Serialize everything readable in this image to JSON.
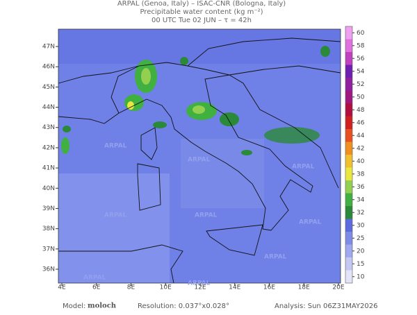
{
  "header": {
    "line1": "ARPAL (Genoa, Italy)  –  ISAC-CNR (Bologna, Italy)",
    "line2": "Precipitable water content (kg m⁻²)",
    "line3": "00 UTC Tue 02 JUN  –  τ = 42h"
  },
  "map": {
    "watermark": "ARPAL",
    "lat_ticks": [
      {
        "value": 36,
        "label": "36N"
      },
      {
        "value": 37,
        "label": "37N"
      },
      {
        "value": 38,
        "label": "38N"
      },
      {
        "value": 39,
        "label": "39N"
      },
      {
        "value": 40,
        "label": "40N"
      },
      {
        "value": 41,
        "label": "41N"
      },
      {
        "value": 42,
        "label": "42N"
      },
      {
        "value": 43,
        "label": "43N"
      },
      {
        "value": 44,
        "label": "44N"
      },
      {
        "value": 45,
        "label": "45N"
      },
      {
        "value": 46,
        "label": "46N"
      },
      {
        "value": 47,
        "label": "47N"
      }
    ],
    "lon_ticks": [
      {
        "value": 4,
        "label": "4E"
      },
      {
        "value": 6,
        "label": "6E"
      },
      {
        "value": 8,
        "label": "8E"
      },
      {
        "value": 10,
        "label": "10E"
      },
      {
        "value": 12,
        "label": "12E"
      },
      {
        "value": 14,
        "label": "14E"
      },
      {
        "value": 16,
        "label": "16E"
      },
      {
        "value": 18,
        "label": "18E"
      },
      {
        "value": 20,
        "label": "20E"
      }
    ]
  },
  "colorbar": {
    "levels": [
      {
        "value": 10,
        "color": "#e4e4f8"
      },
      {
        "value": 15,
        "color": "#c4c8f2"
      },
      {
        "value": 20,
        "color": "#a0a8ef"
      },
      {
        "value": 25,
        "color": "#7e8ce8"
      },
      {
        "value": 30,
        "color": "#5c6ce0"
      },
      {
        "value": 32,
        "color": "#2a8a3a"
      },
      {
        "value": 34,
        "color": "#40b040"
      },
      {
        "value": 36,
        "color": "#94d050"
      },
      {
        "value": 38,
        "color": "#e8e840"
      },
      {
        "value": 40,
        "color": "#f0c030"
      },
      {
        "value": 42,
        "color": "#f09020"
      },
      {
        "value": 44,
        "color": "#e85020"
      },
      {
        "value": 46,
        "color": "#d02020"
      },
      {
        "value": 48,
        "color": "#b01040"
      },
      {
        "value": 50,
        "color": "#a01880"
      },
      {
        "value": 52,
        "color": "#9020a0"
      },
      {
        "value": 54,
        "color": "#7020b0"
      },
      {
        "value": 56,
        "color": "#c040c0"
      },
      {
        "value": 58,
        "color": "#e070e0"
      },
      {
        "value": 60,
        "color": "#f0a0f0"
      }
    ]
  },
  "footer": {
    "model_label": "Model:",
    "model": "moloch",
    "resolution": "Resolution: 0.037°x0.028°",
    "analysis": "Analysis: Sun 06Z31MAY2026"
  }
}
